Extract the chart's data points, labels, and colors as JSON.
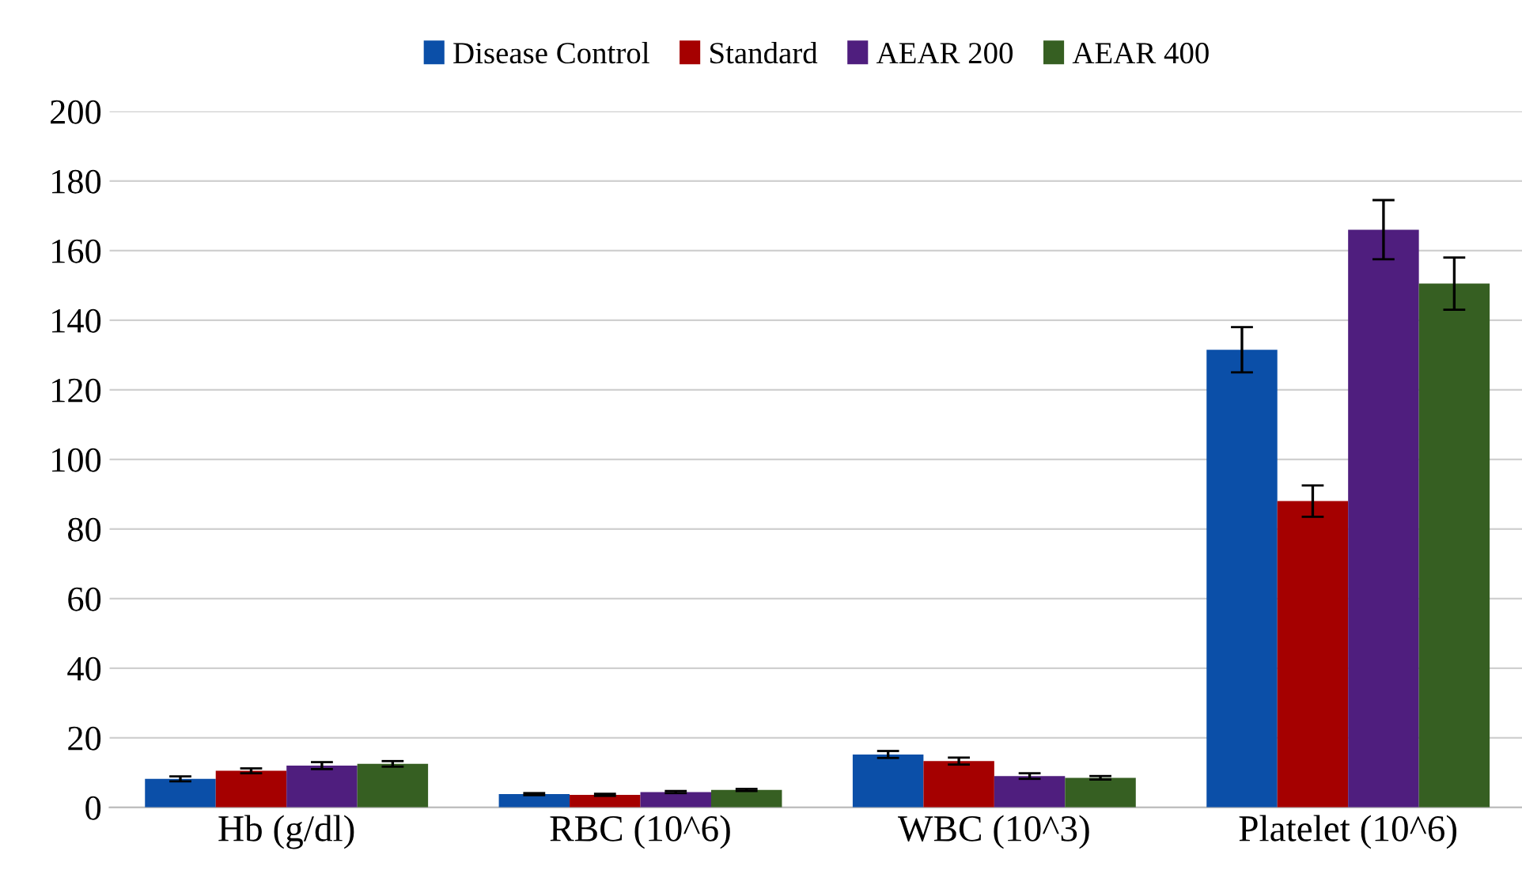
{
  "chart_data": {
    "type": "bar",
    "categories": [
      "Hb (g/dl)",
      "RBC (10^6)",
      "WBC (10^3)",
      "Platelet (10^6)"
    ],
    "series": [
      {
        "name": "Disease Control",
        "color": "#0b4fa8",
        "values": [
          8.2,
          3.8,
          15.2,
          131.5
        ],
        "errors": [
          0.7,
          0.3,
          1,
          6.5
        ]
      },
      {
        "name": "Standard",
        "color": "#a50000",
        "values": [
          10.5,
          3.6,
          13.3,
          88
        ],
        "errors": [
          0.7,
          0.3,
          1,
          4.5
        ]
      },
      {
        "name": "AEAR 200",
        "color": "#4f1e7e",
        "values": [
          12,
          4.4,
          9,
          166
        ],
        "errors": [
          1,
          0.3,
          0.8,
          8.5
        ]
      },
      {
        "name": "AEAR 400",
        "color": "#365f22",
        "values": [
          12.5,
          5,
          8.5,
          150.5
        ],
        "errors": [
          0.8,
          0.3,
          0.5,
          7.5
        ]
      }
    ],
    "ylim": [
      0,
      200
    ],
    "yticks": [
      0,
      20,
      40,
      60,
      80,
      100,
      120,
      140,
      160,
      180,
      200
    ],
    "grid": "y",
    "legend": "top"
  }
}
